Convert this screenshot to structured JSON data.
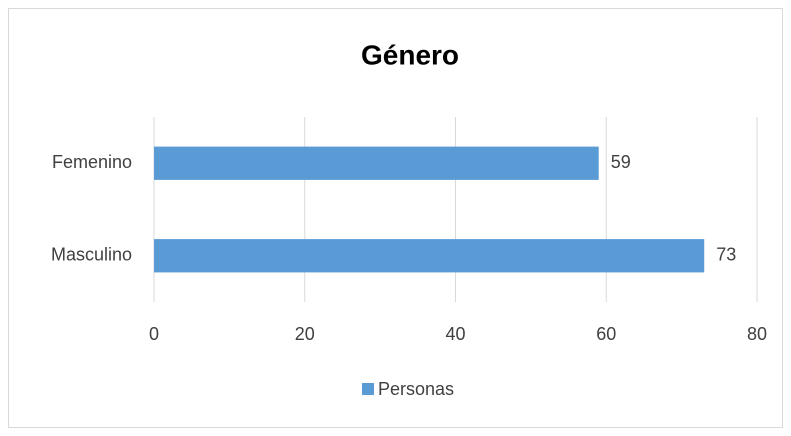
{
  "chart_data": {
    "type": "bar",
    "orientation": "horizontal",
    "title": "Género",
    "categories": [
      "Femenino",
      "Masculino"
    ],
    "series": [
      {
        "name": "Personas",
        "color": "#5b9bd5",
        "values": [
          59,
          73
        ]
      }
    ],
    "xlim": [
      0,
      80
    ],
    "xticks": [
      0,
      20,
      40,
      60,
      80
    ],
    "grid": true,
    "legend": "bottom"
  }
}
